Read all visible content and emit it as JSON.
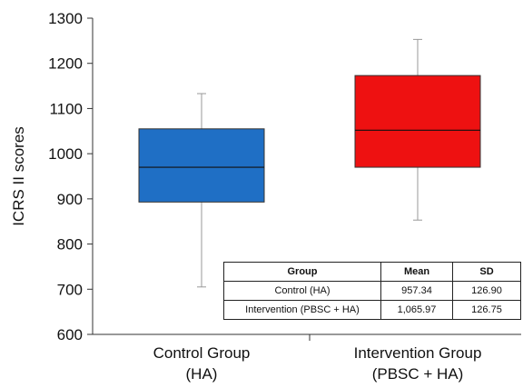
{
  "chart_data": {
    "type": "box",
    "ylabel": "ICRS II scores",
    "ylim": [
      600,
      1300
    ],
    "yticks": [
      600,
      700,
      800,
      900,
      1000,
      1100,
      1200,
      1300
    ],
    "categories": [
      {
        "line1": "Control Group",
        "line2": "(HA)"
      },
      {
        "line1": "Intervention Group",
        "line2": "(PBSC + HA)"
      }
    ],
    "boxes": [
      {
        "whisker_low": 705,
        "q1": 893,
        "median": 970,
        "q3": 1055,
        "whisker_high": 1133,
        "color": "#1f6fc5"
      },
      {
        "whisker_low": 853,
        "q1": 970,
        "median": 1052,
        "q3": 1173,
        "whisker_high": 1253,
        "color": "#ee1111"
      }
    ]
  },
  "table": {
    "headers": [
      "Group",
      "Mean",
      "SD"
    ],
    "rows": [
      [
        "Control (HA)",
        "957.34",
        "126.90"
      ],
      [
        "Intervention (PBSC + HA)",
        "1,065.97",
        "126.75"
      ]
    ]
  }
}
